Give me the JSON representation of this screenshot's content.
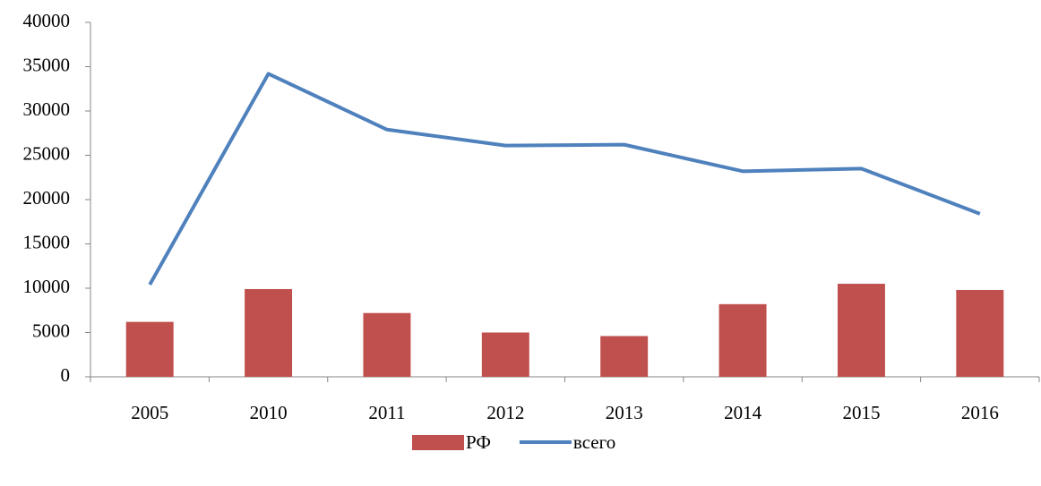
{
  "chart_data": {
    "type": "bar",
    "categories": [
      "2005",
      "2010",
      "2011",
      "2012",
      "2013",
      "2014",
      "2015",
      "2016"
    ],
    "series": [
      {
        "name": "РФ",
        "type": "bar",
        "color": "#c0504d",
        "values": [
          6200,
          9900,
          7200,
          5000,
          4600,
          8200,
          10500,
          9800
        ]
      },
      {
        "name": "всего",
        "type": "line",
        "color": "#4f81bd",
        "values": [
          10400,
          34200,
          27900,
          26100,
          26200,
          23200,
          23500,
          18400
        ]
      }
    ],
    "ylim": [
      0,
      40000
    ],
    "yticks": [
      0,
      5000,
      10000,
      15000,
      20000,
      25000,
      30000,
      35000,
      40000
    ],
    "grid": false,
    "legend": "bottom"
  }
}
